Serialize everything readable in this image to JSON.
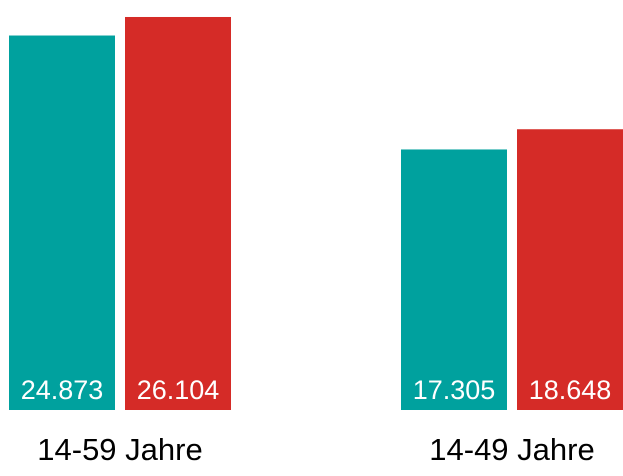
{
  "chart_data": {
    "type": "bar",
    "title": "",
    "xlabel": "",
    "ylabel": "",
    "categories": [
      "14-59 Jahre",
      "14-49 Jahre"
    ],
    "series": [
      {
        "color": "#00a19e",
        "values": [
          24.873,
          17.305
        ],
        "labels": [
          "24.873",
          "17.305"
        ]
      },
      {
        "color": "#d52b27",
        "values": [
          26.104,
          18.648
        ],
        "labels": [
          "26.104",
          "18.648"
        ]
      }
    ],
    "ylim": [
      0,
      26.9
    ],
    "grid": false,
    "legend": "none"
  }
}
